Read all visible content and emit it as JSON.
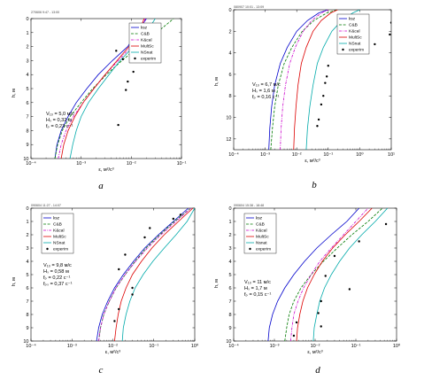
{
  "figure": {
    "panels": [
      "a",
      "b",
      "c",
      "d"
    ]
  },
  "chart_data": [
    {
      "type": "line",
      "panel_label": "a",
      "title": "270606 9:47 - 13:00",
      "xlabel": "ε, м²/с³",
      "ylabel": "h, м",
      "x_scale": "log",
      "xlim": [
        0.0001,
        0.1
      ],
      "x_ticks": [
        "10⁻⁴",
        "10⁻³",
        "10⁻²",
        "10⁻¹"
      ],
      "ylim": [
        10,
        0
      ],
      "y_ticks": [
        "0",
        "1",
        "2",
        "3",
        "4",
        "5",
        "6",
        "7",
        "8",
        "9",
        "10"
      ],
      "legend": {
        "position": "top-right",
        "entries": [
          "ksz",
          "C&B",
          "K&cal",
          "MultSc",
          "NSnat",
          "experim"
        ]
      },
      "annotations": [
        "V₁₀ = 5,0 м/с",
        "Hₛ = 0,32 м",
        "fₚ = 0,23 с⁻¹"
      ],
      "series": [
        {
          "name": "ksz",
          "color": "#0000cc",
          "style": "solid",
          "x": [
            0.0003,
            0.00033,
            0.0004,
            0.00055,
            0.0008,
            0.0013,
            0.0022,
            0.0042,
            0.0085,
            0.013,
            0.02
          ],
          "y": [
            10,
            9,
            8,
            7,
            6,
            5,
            4,
            3,
            2,
            1,
            0
          ]
        },
        {
          "name": "C&B",
          "color": "#007a00",
          "style": "dash",
          "x": [
            0.0003,
            0.00034,
            0.00042,
            0.0006,
            0.001,
            0.0017,
            0.0032,
            0.0065,
            0.014,
            0.032,
            0.07
          ],
          "y": [
            10,
            9,
            8,
            7,
            6,
            5,
            4,
            3,
            2,
            1,
            0
          ]
        },
        {
          "name": "K&cal",
          "color": "#cc00cc",
          "style": "dashdot",
          "x": [
            0.00035,
            0.0004,
            0.0005,
            0.0007,
            0.0011,
            0.0018,
            0.003,
            0.0055,
            0.01,
            0.015,
            0.019
          ],
          "y": [
            10,
            9,
            8,
            7,
            6,
            5,
            4,
            3,
            2,
            1,
            0
          ]
        },
        {
          "name": "MultSc",
          "color": "#dd0000",
          "style": "solid",
          "x": [
            0.0004,
            0.00045,
            0.00055,
            0.00075,
            0.0011,
            0.0018,
            0.003,
            0.0052,
            0.009,
            0.014,
            0.018
          ],
          "y": [
            10,
            9,
            8,
            7,
            6,
            5,
            4,
            3,
            2,
            1,
            0
          ]
        },
        {
          "name": "NSnat",
          "color": "#00aaaa",
          "style": "solid",
          "x": [
            0.0006,
            0.00068,
            0.0008,
            0.001,
            0.0014,
            0.0022,
            0.0036,
            0.006,
            0.011,
            0.02,
            0.03
          ],
          "y": [
            10,
            9,
            8,
            7,
            6,
            5,
            4,
            3,
            2,
            1,
            0
          ]
        }
      ],
      "points": {
        "name": "experim",
        "x": [
          0.005,
          0.0068,
          0.011,
          0.0085,
          0.0078,
          0.0055
        ],
        "y": [
          2.3,
          2.9,
          3.8,
          4.5,
          5.1,
          7.6
        ]
      }
    },
    {
      "type": "line",
      "panel_label": "b",
      "title": "080907 10:01 - 13:09",
      "xlabel": "ε, м²/с³",
      "ylabel": "h, м",
      "x_scale": "log",
      "xlim": [
        0.0001,
        10
      ],
      "x_ticks": [
        "10⁻⁴",
        "10⁻³",
        "10⁻²",
        "10⁻¹",
        "10⁰",
        "10¹"
      ],
      "ylim": [
        13,
        0
      ],
      "y_ticks": [
        "0",
        "2",
        "4",
        "6",
        "8",
        "10",
        "12"
      ],
      "legend": {
        "position": "top-right",
        "entries": [
          "ksz",
          "C&B",
          "K&cal",
          "MultSc",
          "NSnat",
          "experim"
        ]
      },
      "annotations": [
        "V₁₀ = 6,7 м/с",
        "Hₛ = 1,6 м",
        "fₚ = 0,16 с⁻¹"
      ],
      "series": [
        {
          "name": "ksz",
          "color": "#0000cc",
          "style": "solid",
          "x": [
            0.0013,
            0.0014,
            0.0016,
            0.002,
            0.003,
            0.005,
            0.01,
            0.022,
            0.05,
            0.1
          ],
          "y": [
            13,
            11,
            9,
            7,
            5,
            3.5,
            2,
            1,
            0.3,
            0
          ]
        },
        {
          "name": "C&B",
          "color": "#007a00",
          "style": "dash",
          "x": [
            0.0015,
            0.0017,
            0.002,
            0.0026,
            0.004,
            0.007,
            0.015,
            0.035,
            0.09,
            0.2
          ],
          "y": [
            13,
            11,
            9,
            7,
            5,
            3.5,
            2,
            1,
            0.3,
            0
          ]
        },
        {
          "name": "K&cal",
          "color": "#cc00cc",
          "style": "dashdot",
          "x": [
            0.003,
            0.0032,
            0.0036,
            0.0044,
            0.006,
            0.009,
            0.016,
            0.03,
            0.06,
            0.1
          ],
          "y": [
            13,
            11,
            9,
            7,
            5,
            3.5,
            2,
            1,
            0.3,
            0
          ]
        },
        {
          "name": "MultSc",
          "color": "#dd0000",
          "style": "solid",
          "x": [
            0.008,
            0.0085,
            0.0095,
            0.011,
            0.014,
            0.02,
            0.033,
            0.06,
            0.12,
            0.2
          ],
          "y": [
            13,
            11,
            9,
            7,
            5,
            3.5,
            2,
            1,
            0.3,
            0
          ]
        },
        {
          "name": "NSnat",
          "color": "#00aaaa",
          "style": "solid",
          "x": [
            0.02,
            0.022,
            0.026,
            0.033,
            0.045,
            0.07,
            0.13,
            0.27,
            0.6,
            1.0
          ],
          "y": [
            13,
            11,
            9,
            7,
            5,
            3.5,
            2,
            1,
            0.3,
            0
          ]
        }
      ],
      "points": {
        "name": "experim",
        "x": [
          10,
          9,
          3,
          0.1,
          0.09,
          0.08,
          0.07,
          0.06,
          0.05,
          0.045
        ],
        "y": [
          1.2,
          2.3,
          3.2,
          5.2,
          6.2,
          6.8,
          8.0,
          8.8,
          10.2,
          10.8
        ]
      }
    },
    {
      "type": "line",
      "panel_label": "c",
      "title": "090604 11:27 - 14:07",
      "xlabel": "ε, м²/с³",
      "ylabel": "h, м",
      "x_scale": "log",
      "xlim": [
        0.0001,
        1
      ],
      "x_ticks": [
        "10⁻⁴",
        "10⁻³",
        "10⁻²",
        "10⁻¹",
        "10⁰"
      ],
      "ylim": [
        10,
        0
      ],
      "y_ticks": [
        "0",
        "1",
        "2",
        "3",
        "4",
        "5",
        "6",
        "7",
        "8",
        "9",
        "10"
      ],
      "legend": {
        "position": "top-left",
        "entries": [
          "ksz",
          "C&B",
          "K&cal",
          "MultSc",
          "NSnat",
          "experim"
        ]
      },
      "annotations": [
        "V₁₀ = 9,8 м/с",
        "Hₛ = 0,58 м",
        "fₚ = 0,22 с⁻¹",
        "fₚₛ = 0,37 с⁻¹"
      ],
      "series": [
        {
          "name": "ksz",
          "color": "#0000cc",
          "style": "solid",
          "x": [
            0.004,
            0.0045,
            0.0055,
            0.0075,
            0.011,
            0.018,
            0.032,
            0.06,
            0.13,
            0.3,
            0.7
          ],
          "y": [
            10,
            9,
            8,
            7,
            6,
            5,
            4,
            3,
            2,
            1,
            0
          ]
        },
        {
          "name": "C&B",
          "color": "#007a00",
          "style": "dash",
          "x": [
            0.0045,
            0.005,
            0.006,
            0.0082,
            0.012,
            0.02,
            0.035,
            0.065,
            0.14,
            0.32,
            0.8
          ],
          "y": [
            10,
            9,
            8,
            7,
            6,
            5,
            4,
            3,
            2,
            1,
            0
          ]
        },
        {
          "name": "K&cal",
          "color": "#cc00cc",
          "style": "dashdot",
          "x": [
            0.0045,
            0.005,
            0.006,
            0.0082,
            0.012,
            0.02,
            0.036,
            0.07,
            0.15,
            0.35,
            0.8
          ],
          "y": [
            10,
            9,
            8,
            7,
            6,
            5,
            4,
            3,
            2,
            1,
            0
          ]
        },
        {
          "name": "MultSc",
          "color": "#dd0000",
          "style": "solid",
          "x": [
            0.011,
            0.012,
            0.0135,
            0.016,
            0.021,
            0.03,
            0.05,
            0.09,
            0.18,
            0.4,
            0.9
          ],
          "y": [
            10,
            9,
            8,
            7,
            6,
            5,
            4,
            3,
            2,
            1,
            0
          ]
        },
        {
          "name": "NSnat",
          "color": "#00aaaa",
          "style": "solid",
          "x": [
            0.017,
            0.018,
            0.021,
            0.026,
            0.035,
            0.055,
            0.095,
            0.18,
            0.35,
            0.65,
            1.0
          ],
          "y": [
            10,
            9,
            8,
            7,
            6,
            5,
            4,
            3,
            2,
            1,
            0
          ]
        }
      ],
      "points": {
        "name": "experim",
        "x": [
          0.45,
          0.3,
          0.08,
          0.06,
          0.02,
          0.014,
          0.03,
          0.03,
          0.014,
          0.011
        ],
        "y": [
          0.5,
          0.8,
          1.5,
          2.2,
          3.5,
          4.6,
          6.0,
          6.5,
          7.6,
          8.5
        ]
      }
    },
    {
      "type": "line",
      "panel_label": "d",
      "title": "090604 15:38 - 18:48",
      "xlabel": "ε, м²/с³",
      "ylabel": "h, м",
      "x_scale": "log",
      "xlim": [
        0.0001,
        1
      ],
      "x_ticks": [
        "10⁻⁴",
        "10⁻³",
        "10⁻²",
        "10⁻¹",
        "10⁰"
      ],
      "ylim": [
        10,
        0
      ],
      "y_ticks": [
        "0",
        "1",
        "2",
        "3",
        "4",
        "5",
        "6",
        "7",
        "8",
        "9",
        "10"
      ],
      "legend": {
        "position": "top-left",
        "entries": [
          "ksz",
          "C&B",
          "K&cal",
          "MultSc",
          "Nsnat",
          "experim"
        ]
      },
      "annotations": [
        "V₁₀ = 11 м/с",
        "Hₛ = 1,7 м",
        "fₚ = 0,15 с⁻¹"
      ],
      "series": [
        {
          "name": "ksz",
          "color": "#0000cc",
          "style": "solid",
          "x": [
            0.0007,
            0.00075,
            0.0009,
            0.0012,
            0.0018,
            0.003,
            0.0055,
            0.011,
            0.025,
            0.06,
            0.12
          ],
          "y": [
            10,
            9,
            8,
            7,
            6,
            5,
            4,
            3,
            2,
            1,
            0
          ]
        },
        {
          "name": "C&B",
          "color": "#007a00",
          "style": "dash",
          "x": [
            0.0018,
            0.002,
            0.0023,
            0.003,
            0.0045,
            0.008,
            0.016,
            0.035,
            0.08,
            0.2,
            0.45
          ],
          "y": [
            10,
            9,
            8,
            7,
            6,
            5,
            4,
            3,
            2,
            1,
            0
          ]
        },
        {
          "name": "K&cal",
          "color": "#cc00cc",
          "style": "dashdot",
          "x": [
            0.0025,
            0.0027,
            0.003,
            0.0038,
            0.0052,
            0.008,
            0.013,
            0.025,
            0.05,
            0.1,
            0.2
          ],
          "y": [
            10,
            9,
            8,
            7,
            6,
            5,
            4,
            3,
            2,
            1,
            0
          ]
        },
        {
          "name": "MultSc",
          "color": "#dd0000",
          "style": "solid",
          "x": [
            0.0035,
            0.0037,
            0.0042,
            0.005,
            0.0065,
            0.0095,
            0.015,
            0.027,
            0.055,
            0.12,
            0.25
          ],
          "y": [
            10,
            9,
            8,
            7,
            6,
            5,
            4,
            3,
            2,
            1,
            0
          ]
        },
        {
          "name": "Nsnat",
          "color": "#00aaaa",
          "style": "solid",
          "x": [
            0.009,
            0.0095,
            0.011,
            0.013,
            0.017,
            0.025,
            0.04,
            0.07,
            0.14,
            0.3,
            0.6
          ],
          "y": [
            10,
            9,
            8,
            7,
            6,
            5,
            4,
            3,
            2,
            1,
            0
          ]
        }
      ],
      "points": {
        "name": "experim",
        "x": [
          0.55,
          0.12,
          0.03,
          0.018,
          0.07,
          0.014,
          0.012,
          0.0035,
          0.014,
          0.003
        ],
        "y": [
          1.2,
          2.5,
          3.6,
          5.1,
          6.1,
          7.0,
          7.9,
          8.6,
          8.9,
          9.6
        ]
      }
    }
  ]
}
